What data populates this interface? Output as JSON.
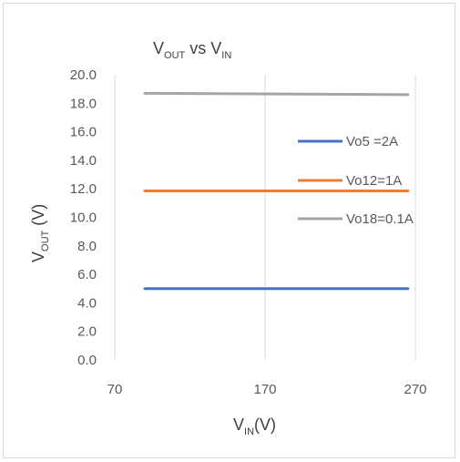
{
  "chart_data": {
    "type": "line",
    "title": {
      "main": "V",
      "sub": "OUT",
      "mid": " vs V",
      "sub2": "IN"
    },
    "xlabel": {
      "main": "V",
      "sub": "IN",
      "rest": "(V)"
    },
    "ylabel": {
      "main": "V",
      "sub": "OUT",
      "rest": " (V)"
    },
    "xlim": [
      70,
      270
    ],
    "ylim": [
      0,
      20
    ],
    "xticks": [
      "70",
      "170",
      "270"
    ],
    "xtick_values": [
      70,
      170,
      270
    ],
    "yticks": [
      "0.0",
      "2.0",
      "4.0",
      "6.0",
      "8.0",
      "10.0",
      "12.0",
      "14.0",
      "16.0",
      "18.0",
      "20.0"
    ],
    "ytick_values": [
      0,
      2,
      4,
      6,
      8,
      10,
      12,
      14,
      16,
      18,
      20
    ],
    "grid": "vertical",
    "legend_position": "right",
    "series": [
      {
        "name": "Vo5 =2A",
        "color": "#4472c4",
        "x": [
          90,
          265
        ],
        "y": [
          5.0,
          5.0
        ]
      },
      {
        "name": "Vo12=1A",
        "color": "#ed7d31",
        "x": [
          90,
          265
        ],
        "y": [
          11.85,
          11.85
        ]
      },
      {
        "name": "Vo18=0.1A",
        "color": "#a5a5a5",
        "x": [
          90,
          265
        ],
        "y": [
          18.7,
          18.6
        ]
      }
    ]
  }
}
